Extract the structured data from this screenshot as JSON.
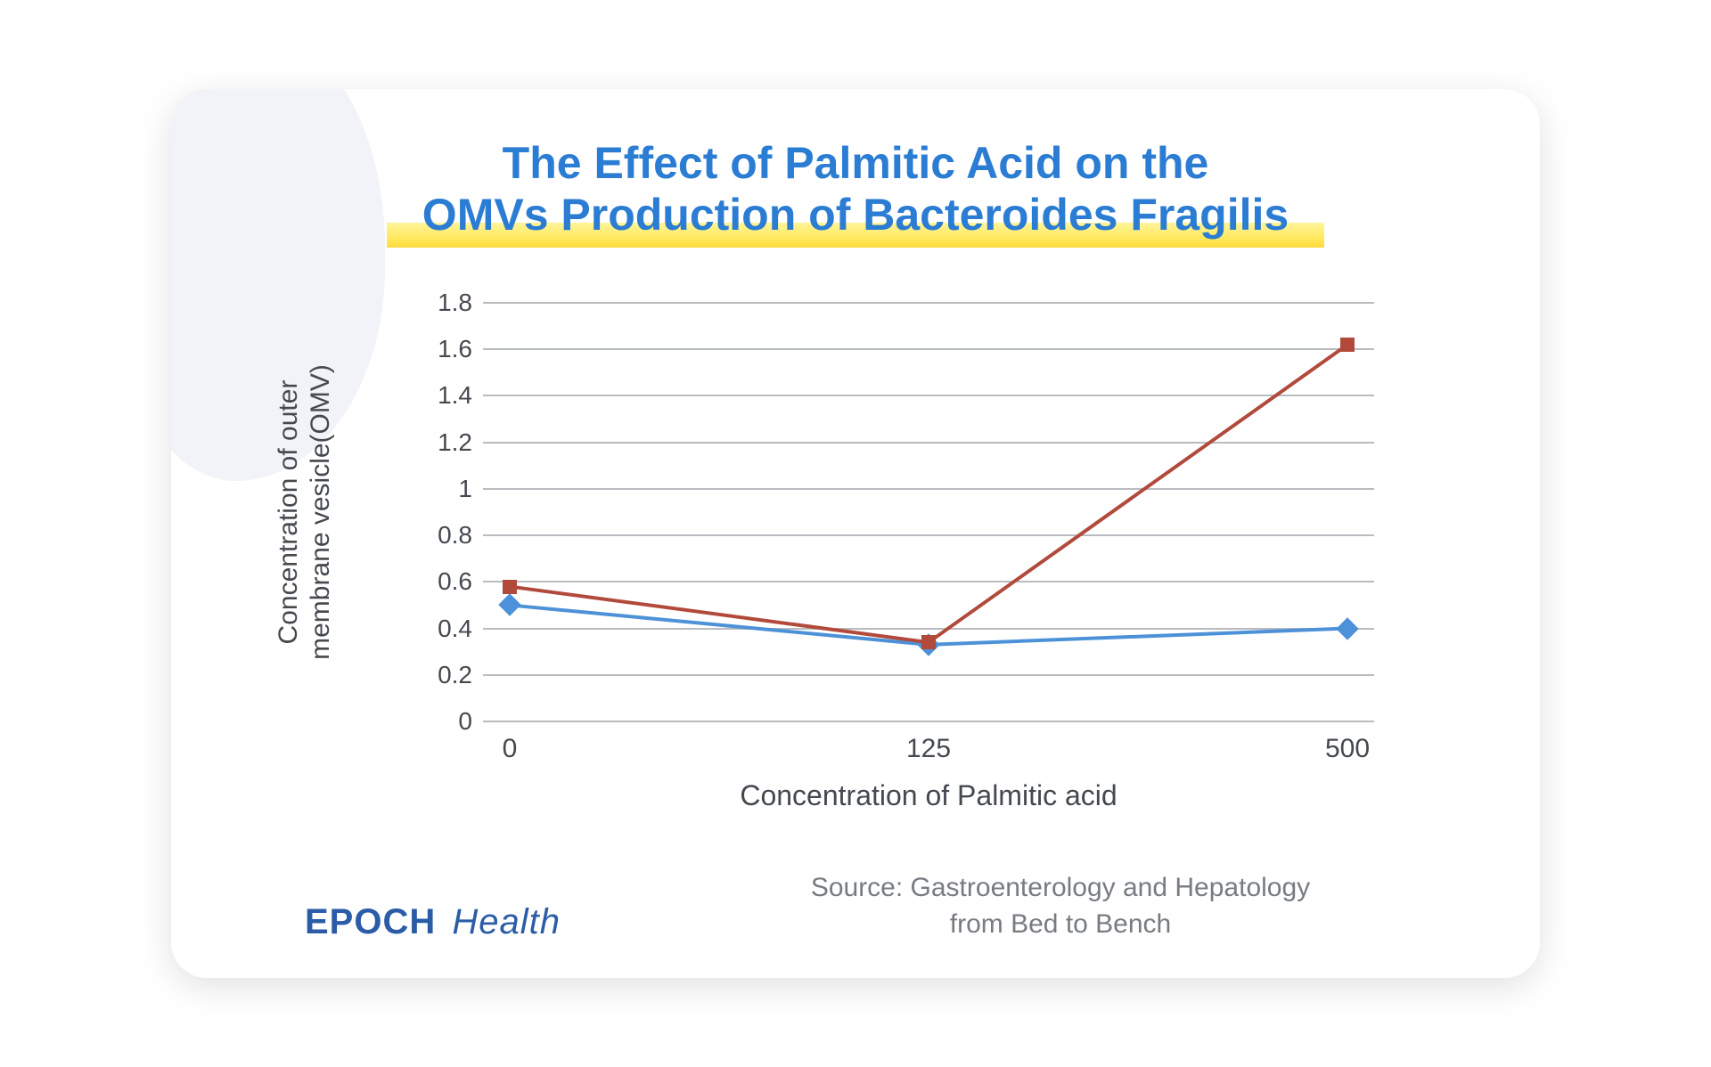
{
  "title": {
    "line1": "The Effect of Palmitic Acid on the",
    "line2": "OMVs Production of Bacteroides Fragilis",
    "color": "#2b7cd3",
    "fontsize": 50,
    "highlight_gradient_top": "#fff59a",
    "highlight_gradient_bottom": "#ffd93d"
  },
  "chart": {
    "type": "line",
    "xlabel": "Concentration of Palmitic acid",
    "ylabel": "Concentration of outer\nmembrane vesicle(OMV)",
    "label_fontsize": 30,
    "tick_fontsize": 28,
    "tick_color": "#444950",
    "x_categories": [
      "0",
      "125",
      "500"
    ],
    "x_positions_pct": [
      3,
      50,
      97
    ],
    "ylim": [
      0,
      1.8
    ],
    "ytick_step": 0.2,
    "yticks": [
      "0",
      "0.2",
      "0.4",
      "0.6",
      "0.8",
      "1",
      "1.2",
      "1.4",
      "1.6",
      "1.8"
    ],
    "grid_color": "#b8bcc0",
    "background_color": "#ffffff",
    "line_width": 4,
    "marker_size": 16,
    "series": [
      {
        "name": "series-blue",
        "color": "#4d91d8",
        "marker": "diamond",
        "values": [
          0.5,
          0.33,
          0.4
        ]
      },
      {
        "name": "series-red",
        "color": "#b24a3c",
        "marker": "square",
        "values": [
          0.58,
          0.34,
          1.62
        ]
      }
    ]
  },
  "brand": {
    "word1": "EPOCH",
    "word2": "Health",
    "color": "#2b5ca8",
    "fontsize": 40
  },
  "source": {
    "line1": "Source: Gastroenterology and Hepatology",
    "line2": "from Bed to Bench",
    "color": "#777c82",
    "fontsize": 30
  },
  "card": {
    "background": "#ffffff",
    "shadow": "rgba(0,0,0,0.12)",
    "blob_color": "#f0f2f7"
  }
}
